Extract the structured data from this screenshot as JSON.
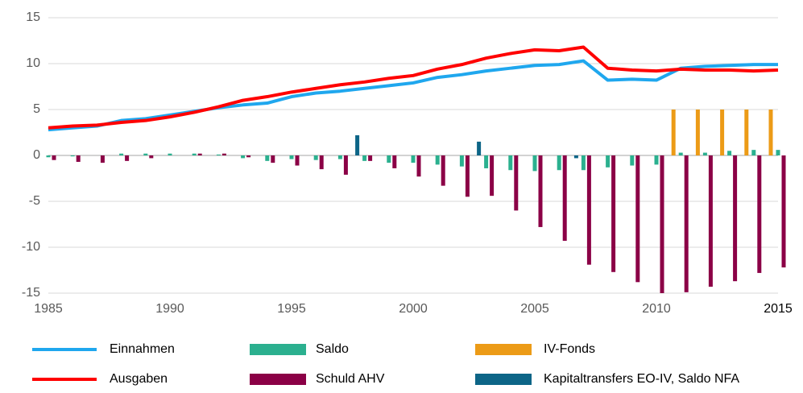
{
  "chart_data": {
    "type": "bar-line",
    "x": [
      1985,
      1986,
      1987,
      1988,
      1989,
      1990,
      1991,
      1992,
      1993,
      1994,
      1995,
      1996,
      1997,
      1998,
      1999,
      2000,
      2001,
      2002,
      2003,
      2004,
      2005,
      2006,
      2007,
      2008,
      2009,
      2010,
      2011,
      2012,
      2013,
      2014,
      2015
    ],
    "xlim": [
      1985,
      2015
    ],
    "xticks": [
      1985,
      1990,
      1995,
      2000,
      2005,
      2010,
      2015
    ],
    "ylim": [
      -15,
      15
    ],
    "yticks": [
      -15,
      -10,
      -5,
      0,
      5,
      10,
      15
    ],
    "grid": true,
    "series": [
      {
        "name": "Einnahmen",
        "kind": "line",
        "color": "#1fa7ee",
        "values": [
          2.8,
          3.0,
          3.2,
          3.8,
          4.0,
          4.4,
          4.8,
          5.2,
          5.5,
          5.7,
          6.4,
          6.8,
          7.0,
          7.3,
          7.6,
          7.9,
          8.5,
          8.8,
          9.2,
          9.5,
          9.8,
          9.9,
          10.3,
          8.2,
          8.3,
          8.2,
          9.5,
          9.7,
          9.8,
          9.9,
          9.9
        ]
      },
      {
        "name": "Ausgaben",
        "kind": "line",
        "color": "#ff0000",
        "values": [
          3.0,
          3.2,
          3.3,
          3.6,
          3.8,
          4.2,
          4.7,
          5.3,
          6.0,
          6.4,
          6.9,
          7.3,
          7.7,
          8.0,
          8.4,
          8.7,
          9.4,
          9.9,
          10.6,
          11.1,
          11.5,
          11.4,
          11.8,
          9.5,
          9.3,
          9.2,
          9.4,
          9.3,
          9.3,
          9.2,
          9.3
        ]
      },
      {
        "name": "Saldo",
        "kind": "bar",
        "color": "#2bb08f",
        "values": [
          -0.2,
          -0.1,
          0,
          0.2,
          0.2,
          0.2,
          0.2,
          0.1,
          -0.3,
          -0.6,
          -0.4,
          -0.5,
          -0.4,
          -0.6,
          -0.8,
          -0.8,
          -1.0,
          -1.2,
          -1.4,
          -1.6,
          -1.7,
          -1.6,
          -1.6,
          -1.3,
          -1.1,
          -1.0,
          0.3,
          0.3,
          0.5,
          0.6,
          0.6
        ]
      },
      {
        "name": "Schuld AHV",
        "kind": "bar",
        "color": "#8b0046",
        "values": [
          -0.5,
          -0.7,
          -0.8,
          -0.6,
          -0.3,
          0,
          0.2,
          0.2,
          -0.2,
          -0.8,
          -1.1,
          -1.5,
          -2.1,
          -0.6,
          -1.4,
          -2.3,
          -3.3,
          -4.5,
          -4.4,
          -6.0,
          -7.8,
          -9.3,
          -11.9,
          -12.7,
          -13.8,
          -15.0,
          -14.9,
          -14.3,
          -13.7,
          -12.8,
          -12.2
        ]
      },
      {
        "name": "IV-Fonds",
        "kind": "bar",
        "color": "#ec9b17",
        "values": [
          null,
          null,
          null,
          null,
          null,
          null,
          null,
          null,
          null,
          null,
          null,
          null,
          null,
          null,
          null,
          null,
          null,
          null,
          null,
          null,
          null,
          null,
          null,
          null,
          null,
          null,
          5,
          5,
          5,
          5,
          5
        ]
      },
      {
        "name": "Kapitaltransfers EO-IV, Saldo NFA",
        "kind": "bar",
        "color": "#0d6587",
        "values": [
          null,
          null,
          null,
          null,
          null,
          null,
          null,
          null,
          null,
          null,
          null,
          null,
          null,
          2.2,
          null,
          null,
          null,
          null,
          1.5,
          null,
          null,
          null,
          -0.3,
          null,
          null,
          null,
          null,
          null,
          null,
          null,
          null
        ]
      }
    ]
  }
}
